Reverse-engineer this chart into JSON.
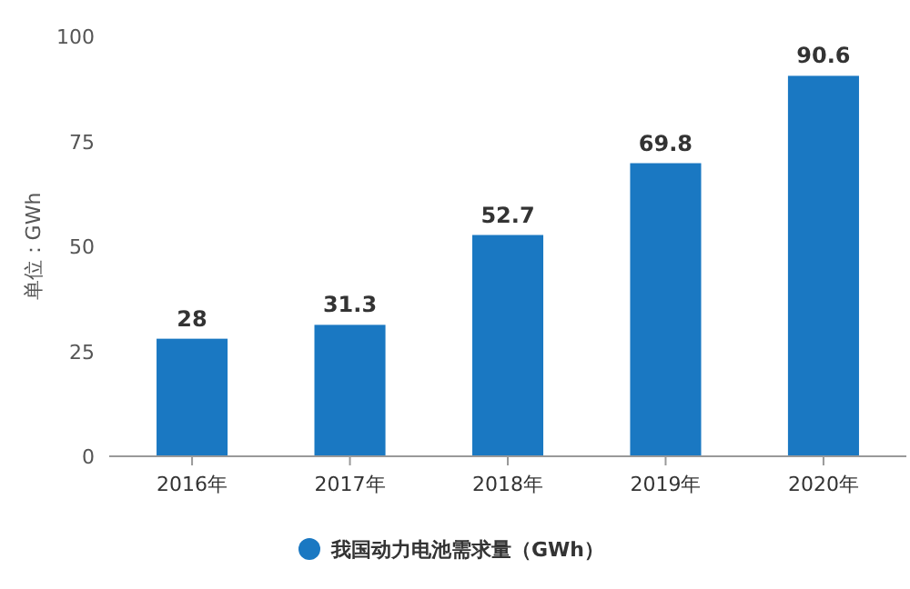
{
  "chart_data": {
    "type": "bar",
    "ylabel": "单位：GWh",
    "categories": [
      "2016年",
      "2017年",
      "2018年",
      "2019年",
      "2020年"
    ],
    "series": [
      {
        "name": "我国动力电池需求量（GWh）",
        "color": "#1a78c2",
        "values": [
          28,
          31.3,
          52.7,
          69.8,
          90.6
        ]
      }
    ],
    "ylim": [
      0,
      100
    ],
    "yticks": [
      0,
      25,
      50,
      75,
      100
    ],
    "data_labels": true,
    "legend": "bottom",
    "grid": false
  }
}
